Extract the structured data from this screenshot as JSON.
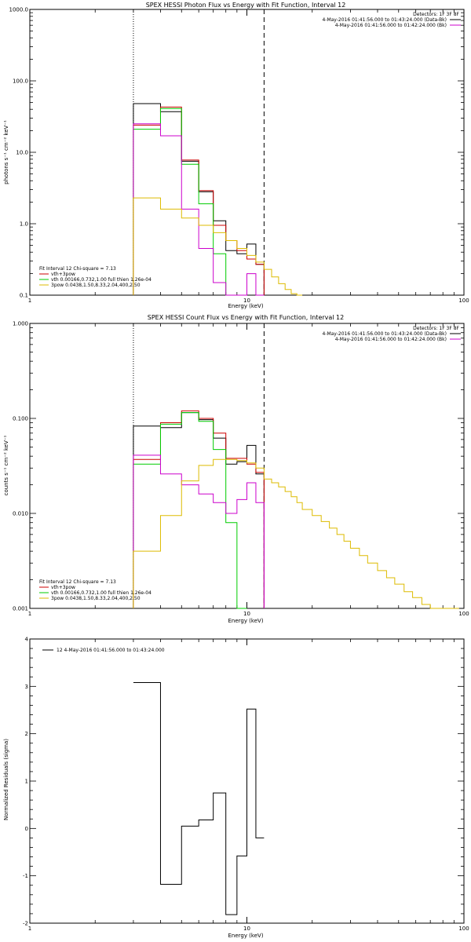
{
  "chart_data": [
    {
      "type": "line",
      "title": "SPEX HESSI Photon Flux vs Energy with Fit Function, Interval 12",
      "xlabel": "Energy (keV)",
      "ylabel": "photons s⁻¹ cm⁻² keV⁻¹",
      "xlim": [
        1,
        100
      ],
      "ylim": [
        0.1,
        1000
      ],
      "xscale": "log",
      "yscale": "log",
      "x_tick_labels": [
        "1",
        "10",
        "100"
      ],
      "y_tick_labels": [
        "0.1",
        "1.0",
        "10.0",
        "100.0",
        "1000.0"
      ],
      "y_tick_values": [
        0.1,
        1,
        10,
        100,
        1000
      ],
      "vlines": [
        {
          "x": 3.0,
          "style": "dotted"
        },
        {
          "x": 12.0,
          "style": "dashed"
        }
      ],
      "legend_top": [
        {
          "text": "Detectors: 1F 3F 8F",
          "color": "#000000"
        },
        {
          "text": "4-May-2016 01:41:56.000 to 01:43:24.000 (Data-Bk)",
          "color": "#000000"
        },
        {
          "text": "4-May-2016 01:41:56.000 to 01:42:24.000 (Bk)",
          "color": "#cc00cc"
        }
      ],
      "legend_bottom": [
        {
          "text": "Fit Interval 12   Chi-square = 7.13",
          "color": "#000000"
        },
        {
          "text": "vth+3pow",
          "color": "#cc0000"
        },
        {
          "text": "vth 0.00166,0.732,1.00  full thien 1.26e-04",
          "color": "#00cc00"
        },
        {
          "text": "3pow 0.0438,1.50,8.33,2.04,400,2.50",
          "color": "#ddbb00"
        }
      ],
      "series": [
        {
          "color": "#000000",
          "edges": [
            3,
            4,
            5,
            6,
            7,
            8,
            9,
            10,
            11,
            12
          ],
          "values": [
            48,
            37,
            7.5,
            2.8,
            1.1,
            0.42,
            0.38,
            0.52,
            0.27
          ]
        },
        {
          "color": "#cc0000",
          "edges": [
            3,
            4,
            5,
            6,
            7,
            8,
            9,
            10,
            11,
            12
          ],
          "values": [
            24,
            43,
            7.8,
            2.9,
            0.95,
            0.58,
            0.42,
            0.32,
            0.27
          ]
        },
        {
          "color": "#00cc00",
          "edges": [
            3,
            4,
            5,
            6,
            7,
            8,
            9,
            10
          ],
          "values": [
            21,
            41,
            6.8,
            1.9,
            0.38,
            0.1,
            0.1
          ]
        },
        {
          "color": "#cc00cc",
          "edges": [
            3,
            4,
            5,
            6,
            7,
            8,
            9,
            10,
            11,
            12
          ],
          "values": [
            25,
            17,
            1.6,
            0.45,
            0.15,
            0.1,
            0.1,
            0.2,
            0.1
          ]
        },
        {
          "color": "#ddbb00",
          "edges": [
            3,
            4,
            5,
            6,
            7,
            8,
            9,
            10,
            11,
            12,
            13,
            14,
            15,
            16,
            17,
            18
          ],
          "values": [
            2.3,
            1.6,
            1.2,
            0.95,
            0.75,
            0.58,
            0.45,
            0.36,
            0.29,
            0.23,
            0.18,
            0.145,
            0.12,
            0.105,
            0.1
          ]
        }
      ]
    },
    {
      "type": "line",
      "title": "SPEX HESSI Count Flux vs Energy with Fit Function, Interval 12",
      "xlabel": "Energy (keV)",
      "ylabel": "counts s⁻¹ cm⁻² keV⁻¹",
      "xlim": [
        1,
        100
      ],
      "ylim": [
        0.001,
        1
      ],
      "xscale": "log",
      "yscale": "log",
      "x_tick_labels": [
        "1",
        "10",
        "100"
      ],
      "y_tick_labels": [
        "0.001",
        "0.010",
        "0.100",
        "1.000"
      ],
      "y_tick_values": [
        0.001,
        0.01,
        0.1,
        1
      ],
      "vlines": [
        {
          "x": 3.0,
          "style": "dotted"
        },
        {
          "x": 12.0,
          "style": "dashed"
        }
      ],
      "legend_top": [
        {
          "text": "Detectors: 1F 3F 8F",
          "color": "#000000"
        },
        {
          "text": "4-May-2016 01:41:56.000 to 01:43:24.000 (Data-Bk)",
          "color": "#000000"
        },
        {
          "text": "4-May-2016 01:41:56.000 to 01:42:24.000 (Bk)",
          "color": "#cc00cc"
        }
      ],
      "legend_bottom": [
        {
          "text": "Fit Interval 12   Chi-square = 7.13",
          "color": "#000000"
        },
        {
          "text": "vth+3pow",
          "color": "#cc0000"
        },
        {
          "text": "vth 0.00166,0.732,1.00  full thien 1.26e-04",
          "color": "#00cc00"
        },
        {
          "text": "3pow 0.0438,1.50,8.33,2.04,400,2.50",
          "color": "#ddbb00"
        }
      ],
      "series": [
        {
          "color": "#000000",
          "edges": [
            3,
            4,
            5,
            6,
            7,
            8,
            9,
            10,
            11,
            12
          ],
          "values": [
            0.083,
            0.08,
            0.115,
            0.097,
            0.062,
            0.033,
            0.035,
            0.052,
            0.026
          ]
        },
        {
          "color": "#cc0000",
          "edges": [
            3,
            4,
            5,
            6,
            7,
            8,
            9,
            10,
            11,
            12
          ],
          "values": [
            0.037,
            0.09,
            0.12,
            0.1,
            0.07,
            0.038,
            0.038,
            0.033,
            0.027
          ]
        },
        {
          "color": "#00cc00",
          "edges": [
            3,
            4,
            5,
            6,
            7,
            8,
            9,
            10
          ],
          "values": [
            0.033,
            0.087,
            0.115,
            0.093,
            0.047,
            0.008,
            0.001
          ]
        },
        {
          "color": "#cc00cc",
          "edges": [
            3,
            4,
            5,
            6,
            7,
            8,
            9,
            10,
            11,
            12
          ],
          "values": [
            0.041,
            0.026,
            0.02,
            0.016,
            0.013,
            0.01,
            0.014,
            0.021,
            0.013
          ]
        },
        {
          "color": "#ddbb00",
          "edges": [
            3,
            4,
            5,
            6,
            7,
            8,
            9,
            10,
            11,
            12,
            13,
            14,
            15,
            16,
            17,
            18,
            20,
            22,
            24,
            26,
            28,
            30,
            33,
            36,
            40,
            44,
            48,
            53,
            58,
            64,
            70,
            77,
            85,
            95
          ],
          "values": [
            0.004,
            0.0095,
            0.022,
            0.032,
            0.037,
            0.037,
            0.036,
            0.034,
            0.03,
            0.023,
            0.021,
            0.019,
            0.017,
            0.015,
            0.013,
            0.011,
            0.0095,
            0.0082,
            0.007,
            0.006,
            0.0051,
            0.0043,
            0.0036,
            0.003,
            0.0025,
            0.0021,
            0.0018,
            0.0015,
            0.0013,
            0.0011,
            0.001,
            0.001,
            0.001
          ]
        }
      ]
    },
    {
      "type": "line",
      "title": "",
      "xlabel": "Energy (keV)",
      "ylabel": "Normalized Residuals (sigma)",
      "xlim": [
        1,
        100
      ],
      "ylim": [
        -2,
        4
      ],
      "xscale": "log",
      "yscale": "linear",
      "x_tick_labels": [
        "1",
        "10",
        "100"
      ],
      "y_tick_labels": [
        "-2",
        "-1",
        "0",
        "1",
        "2",
        "3",
        "4"
      ],
      "y_tick_values": [
        -2,
        -1,
        0,
        1,
        2,
        3,
        4
      ],
      "legend_top": [
        {
          "text": "12  4-May-2016 01:41:56.000 to 01:43:24.000",
          "color": "#000000"
        }
      ],
      "legend_bottom": [],
      "vlines": [],
      "series": [
        {
          "color": "#000000",
          "edges": [
            3,
            4,
            5,
            6,
            7,
            8,
            9,
            10,
            11,
            12
          ],
          "values": [
            3.08,
            -1.18,
            0.05,
            0.18,
            0.75,
            -1.82,
            -0.58,
            2.52,
            -0.2
          ]
        }
      ]
    }
  ]
}
